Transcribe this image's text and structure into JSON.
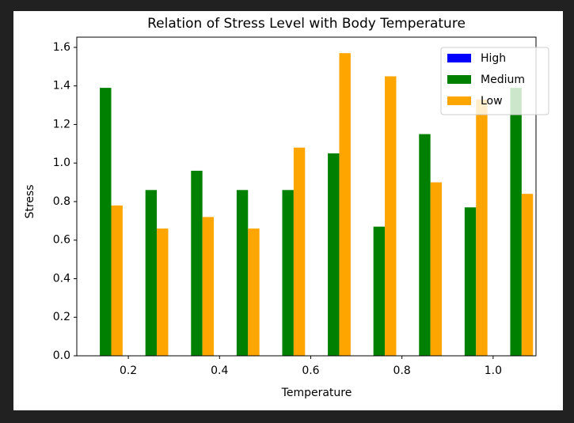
{
  "chart_data": {
    "type": "bar",
    "title": "Relation of Stress Level with Body Temperature",
    "x_label": "Temperature",
    "y_label": "Stress",
    "x": [
      0.15,
      0.25,
      0.35,
      0.45,
      0.55,
      0.65,
      0.75,
      0.85,
      0.95,
      1.05
    ],
    "series": [
      {
        "name": "High",
        "color": "#0000ff",
        "values": [
          0,
          0,
          0,
          0,
          0,
          0,
          0,
          0,
          0,
          0
        ]
      },
      {
        "name": "Medium",
        "color": "#008000",
        "values": [
          1.39,
          0.86,
          0.96,
          0.86,
          0.86,
          1.05,
          0.67,
          1.15,
          0.77,
          1.39
        ]
      },
      {
        "name": "Low",
        "color": "#ffa500",
        "values": [
          0.78,
          0.66,
          0.72,
          0.66,
          1.08,
          1.57,
          1.45,
          0.9,
          1.33,
          0.84
        ]
      }
    ],
    "xlim": [
      0.087,
      1.094
    ],
    "xticks": [
      0.2,
      0.4,
      0.6,
      0.8,
      {
        "value": 1,
        "label": "1.0"
      }
    ],
    "ylim": [
      0,
      1.653
    ],
    "yticks": [
      {
        "value": 0,
        "label": "0.0"
      },
      0.2,
      0.4,
      0.6,
      0.8,
      {
        "value": 1,
        "label": "1.0"
      },
      1.2,
      1.4,
      1.6
    ],
    "legend": "upper right"
  }
}
